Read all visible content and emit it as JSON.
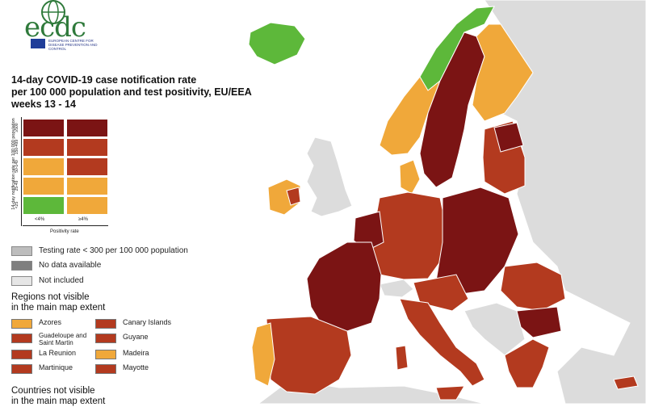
{
  "logo": {
    "text": "ecdc",
    "subtitle": "EUROPEAN CENTRE FOR DISEASE PREVENTION AND CONTROL"
  },
  "title_lines": [
    "14-day COVID-19 case notification rate",
    "per 100 000 population and test positivity, EU/EEA",
    "weeks 13 - 14"
  ],
  "legend": {
    "y_axis_label": "14-day notification rate per 100 000 population",
    "x_axis_label": "Positivity rate",
    "columns": [
      "<4%",
      "≥4%"
    ],
    "rows": [
      {
        "label": "≥500",
        "colors": [
          "#7b1414",
          "#7b1414"
        ]
      },
      {
        "label": "150-499",
        "colors": [
          "#b33a1f",
          "#b33a1f"
        ]
      },
      {
        "label": "50-149",
        "colors": [
          "#f0a83a",
          "#b33a1f"
        ]
      },
      {
        "label": "25-49",
        "colors": [
          "#f0a83a",
          "#f0a83a"
        ]
      },
      {
        "label": "<25",
        "colors": [
          "#5db83a",
          "#f0a83a"
        ]
      }
    ]
  },
  "keys": [
    {
      "label": "Testing rate < 300 per 100 000 population",
      "color": "#bdbdbd"
    },
    {
      "label": "No data available",
      "color": "#7f7f7f"
    },
    {
      "label": "Not included",
      "color": "#e6e6e6"
    }
  ],
  "regions_heading": [
    "Regions not visible",
    "in the main map extent"
  ],
  "regions": [
    {
      "label": "Azores",
      "color": "#f0a83a"
    },
    {
      "label": "Canary Islands",
      "color": "#b33a1f"
    },
    {
      "label": "Guadeloupe and Saint Martin",
      "color": "#b33a1f"
    },
    {
      "label": "Guyane",
      "color": "#b33a1f"
    },
    {
      "label": "La Reunion",
      "color": "#b33a1f"
    },
    {
      "label": "Madeira",
      "color": "#f0a83a"
    },
    {
      "label": "Martinique",
      "color": "#b33a1f"
    },
    {
      "label": "Mayotte",
      "color": "#b33a1f"
    }
  ],
  "countries_heading": [
    "Countries not visible",
    "in the main map extent"
  ],
  "colors": {
    "sea": "#ffffff",
    "not_included": "#dcdcdc",
    "dark_red": "#7b1414",
    "red": "#b33a1f",
    "orange": "#f0a83a",
    "green": "#5db83a"
  }
}
